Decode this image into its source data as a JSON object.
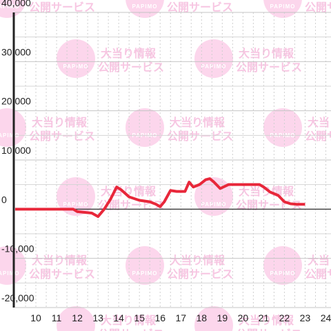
{
  "chart_data": {
    "type": "line",
    "watermark": {
      "logo": "PAPIMO",
      "line1": "大当り情報",
      "line2": "公開サービス"
    },
    "xlim": [
      9,
      24.25
    ],
    "xticks": [
      10,
      11,
      12,
      13,
      14,
      15,
      16,
      17,
      18,
      19,
      20,
      21,
      22,
      23,
      24
    ],
    "x_minor_ticks": [
      9.5,
      10.5,
      11.5,
      12.5,
      13.5,
      14.5,
      15.5,
      16.5,
      17.5,
      18.5,
      19.5,
      20.5,
      21.5,
      22.5,
      23.5
    ],
    "ylim": [
      -20000,
      40000
    ],
    "yticks": [
      {
        "value": -20000,
        "label": "-20,000"
      },
      {
        "value": -10000,
        "label": "-10,000"
      },
      0,
      {
        "value": 10000,
        "label": "10,000"
      },
      {
        "value": 20000,
        "label": "20,000"
      },
      {
        "value": 30000,
        "label": "30,000"
      },
      {
        "value": 40000,
        "label": "40,000"
      }
    ],
    "y_minor_ticks": [
      -15000,
      -5000,
      5000,
      15000,
      25000,
      35000
    ],
    "grid": true,
    "series": [
      {
        "name": null,
        "color": "#e8273a",
        "x": [
          9,
          11.8,
          12,
          12.7,
          13,
          13.3,
          13.6,
          13.9,
          14.1,
          14.5,
          15,
          15.5,
          15.8,
          16,
          16.2,
          16.5,
          16.8,
          17.2,
          17.4,
          17.6,
          17.9,
          18.2,
          18.4,
          18.6,
          18.9,
          19.3,
          20,
          20.8,
          21,
          21.3,
          21.7,
          22,
          22.3,
          22.6,
          23
        ],
        "values": [
          0,
          0,
          -500,
          -800,
          -1500,
          0,
          2000,
          4500,
          4000,
          2500,
          1800,
          1500,
          1000,
          500,
          1500,
          3800,
          3600,
          3600,
          5500,
          4500,
          5000,
          6000,
          6200,
          5500,
          4200,
          5000,
          5000,
          5000,
          4500,
          3500,
          2800,
          1500,
          1100,
          1000,
          1000
        ]
      }
    ]
  }
}
